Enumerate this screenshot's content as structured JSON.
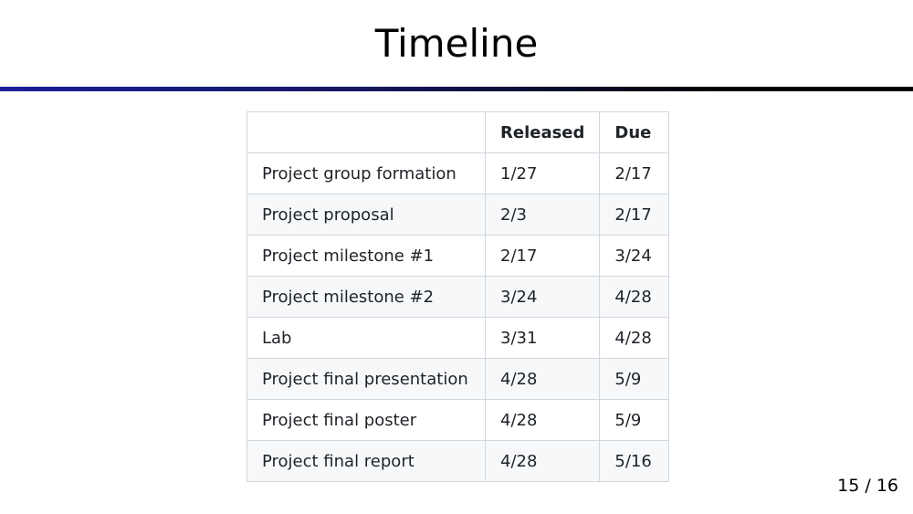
{
  "slide": {
    "title": "Timeline",
    "page_number": "15 / 16"
  },
  "table": {
    "headers": [
      "",
      "Released",
      "Due"
    ],
    "rows": [
      {
        "task": "Project group formation",
        "released": "1/27",
        "due": "2/17"
      },
      {
        "task": "Project proposal",
        "released": "2/3",
        "due": "2/17"
      },
      {
        "task": "Project milestone #1",
        "released": "2/17",
        "due": "3/24"
      },
      {
        "task": "Project milestone #2",
        "released": "3/24",
        "due": "4/28"
      },
      {
        "task": "Lab",
        "released": "3/31",
        "due": "4/28"
      },
      {
        "task": "Project final presentation",
        "released": "4/28",
        "due": "5/9"
      },
      {
        "task": "Project final poster",
        "released": "4/28",
        "due": "5/9"
      },
      {
        "task": "Project final report",
        "released": "4/28",
        "due": "5/16"
      }
    ]
  },
  "colors": {
    "rule_start": "#1b1f9a",
    "rule_end": "#000000",
    "table_border": "#d0d7de",
    "row_stripe": "#f6f8fa",
    "text": "#1f2328"
  }
}
